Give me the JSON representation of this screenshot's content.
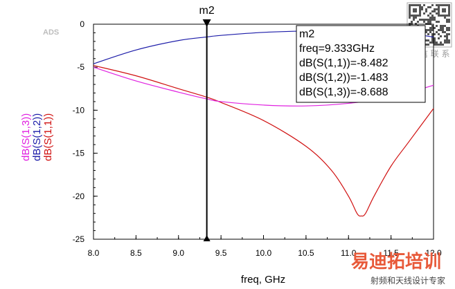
{
  "watermark": {
    "logo_text": "ADS",
    "corner_text": "微 信 联 系",
    "brand": "易迪拓培训",
    "brand_sub": "射频和天线设计专家"
  },
  "chart_data": {
    "type": "line",
    "xlabel": "freq, GHz",
    "xlim": [
      8.0,
      12.0
    ],
    "ylim": [
      -25,
      0
    ],
    "xticks": [
      "8.0",
      "8.5",
      "9.0",
      "9.5",
      "10.0",
      "10.5",
      "11.0",
      "11.5",
      "12.0"
    ],
    "yticks": [
      "0",
      "-5",
      "-10",
      "-15",
      "-20",
      "-25"
    ],
    "grid": false,
    "ylabels": [
      {
        "text": "dB(S(1,3))",
        "color": "#e020e0"
      },
      {
        "text": "dB(S(1,2))",
        "color": "#1a1aa8"
      },
      {
        "text": "dB(S(1,1))",
        "color": "#d01010"
      }
    ],
    "series": [
      {
        "name": "dB(S(1,1))",
        "color": "#d01010",
        "x": [
          8.0,
          8.5,
          9.0,
          9.333,
          9.5,
          10.0,
          10.5,
          10.8,
          11.0,
          11.1,
          11.15,
          11.2,
          11.3,
          11.5,
          11.7,
          12.0
        ],
        "y": [
          -4.8,
          -6.0,
          -7.5,
          -8.482,
          -9.1,
          -11.2,
          -14.2,
          -17.0,
          -20.0,
          -22.0,
          -22.3,
          -22.0,
          -20.0,
          -16.5,
          -13.8,
          -9.8
        ]
      },
      {
        "name": "dB(S(1,2))",
        "color": "#1a1aa8",
        "x": [
          8.0,
          8.5,
          9.0,
          9.333,
          9.5,
          10.0,
          10.5,
          11.0,
          11.5,
          11.8,
          12.0
        ],
        "y": [
          -4.6,
          -3.0,
          -1.9,
          -1.483,
          -1.3,
          -0.95,
          -0.8,
          -0.8,
          -1.0,
          -1.2,
          -1.5
        ]
      },
      {
        "name": "dB(S(1,3))",
        "color": "#e020e0",
        "x": [
          8.0,
          8.5,
          9.0,
          9.333,
          9.5,
          10.0,
          10.5,
          11.0,
          11.5,
          12.0
        ],
        "y": [
          -5.0,
          -6.6,
          -7.9,
          -8.688,
          -9.0,
          -9.4,
          -9.5,
          -9.2,
          -8.5,
          -7.1
        ]
      }
    ],
    "marker": {
      "name": "m2",
      "x": 9.333,
      "lines": [
        "m2",
        "freq=9.333GHz",
        "dB(S(1,1))=-8.482",
        "dB(S(1,2))=-1.483",
        "dB(S(1,3))=-8.688"
      ]
    }
  }
}
